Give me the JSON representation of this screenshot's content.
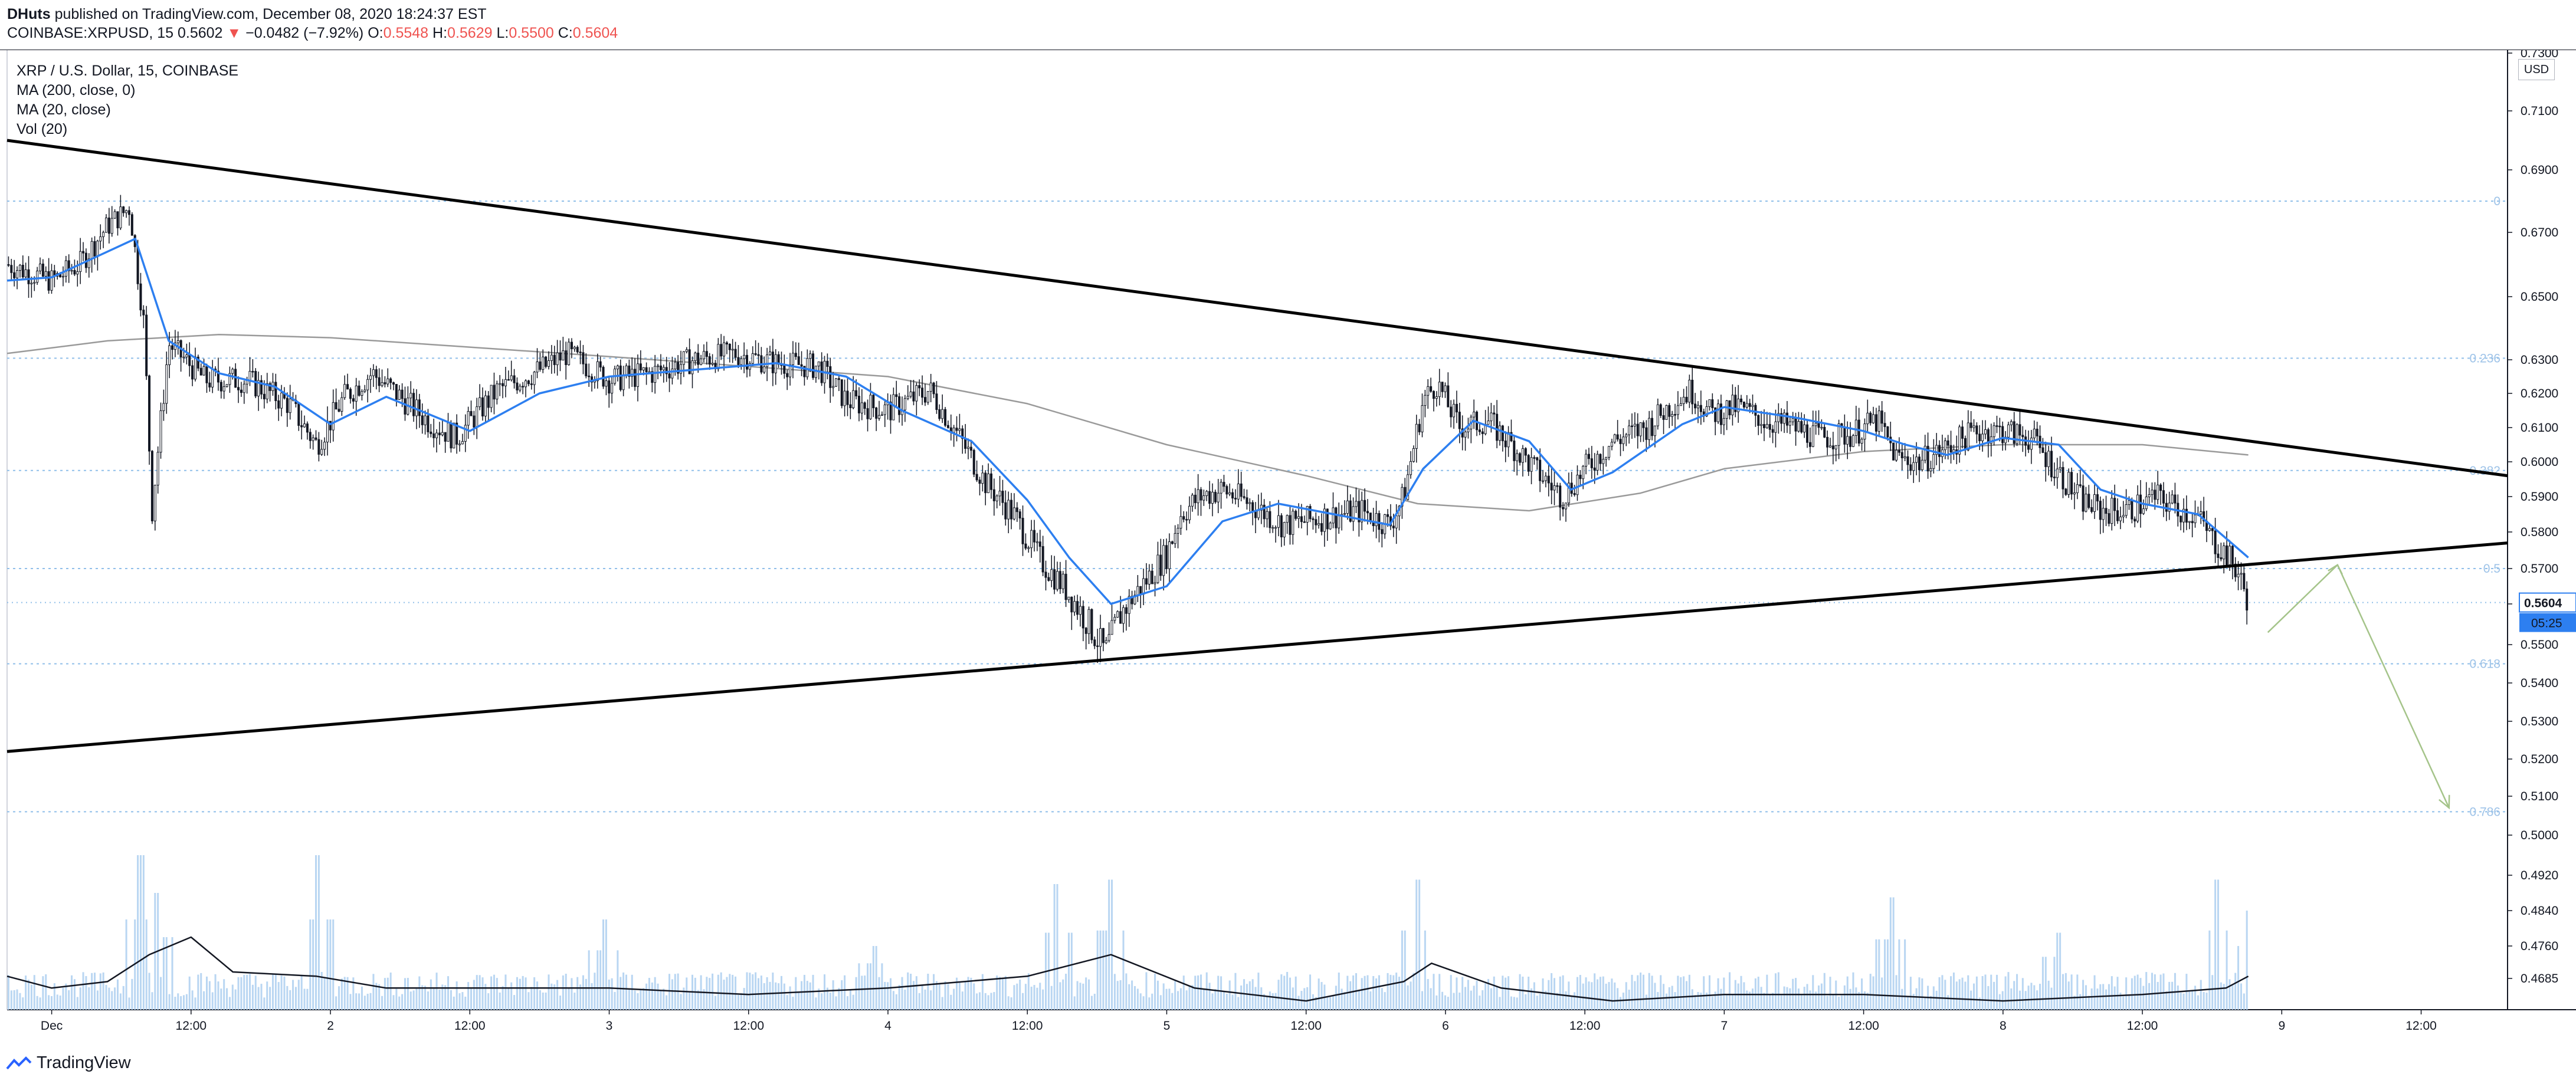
{
  "header": {
    "author": "DHuts",
    "published": "published on TradingView.com, December 08, 2020 18:24:37 EST",
    "symbol_line": "COINBASE:XRPUSD, 15",
    "last": "0.5602",
    "down_arrow": "▼",
    "change": "−0.0482 (−7.92%)",
    "o_label": "O:",
    "o": "0.5548",
    "h_label": "H:",
    "h": "0.5629",
    "l_label": "L:",
    "l": "0.5500",
    "c_label": "C:",
    "c": "0.5604"
  },
  "legend": {
    "title": "XRP / U.S. Dollar, 15, COINBASE",
    "ma200": "MA (200, close, 0)",
    "ma20": "MA (20, close)",
    "vol": "Vol (20)"
  },
  "axis": {
    "currency": "USD",
    "price_tag": "0.5604",
    "countdown": "05:25"
  },
  "footer": {
    "brand": "TradingView"
  },
  "colors": {
    "candle": "#131722",
    "ma20": "#2d7ff0",
    "ma200": "#9a9a9a",
    "volume": "#b9d6f2",
    "fib": "#90bfe9",
    "trend": "#000000",
    "projection": "#a5c48a",
    "tag": "#2d7ff0"
  },
  "chart_data": {
    "type": "candlestick",
    "symbol": "XRPUSD",
    "interval": "15",
    "x_ticks": [
      "Dec",
      "12:00",
      "2",
      "12:00",
      "3",
      "12:00",
      "4",
      "12:00",
      "5",
      "12:00",
      "6",
      "12:00",
      "7",
      "12:00",
      "8",
      "12:00",
      "9",
      "12:00"
    ],
    "x_tick_days": [
      1.0,
      1.5,
      2.0,
      2.5,
      3.0,
      3.5,
      4.0,
      4.5,
      5.0,
      5.5,
      6.0,
      6.5,
      7.0,
      7.5,
      8.0,
      8.5,
      9.0,
      9.5
    ],
    "y_ticks": [
      "0.7300",
      "0.7100",
      "0.6900",
      "0.6700",
      "0.6500",
      "0.6300",
      "0.6200",
      "0.6100",
      "0.6000",
      "0.5900",
      "0.5800",
      "0.5700",
      "0.5600",
      "0.5500",
      "0.5400",
      "0.5300",
      "0.5200",
      "0.5100",
      "0.5000",
      "0.4920",
      "0.4840",
      "0.4760",
      "0.4685"
    ],
    "fib_levels": [
      {
        "label": "0",
        "price": 0.68
      },
      {
        "label": "0.236",
        "price": 0.6305
      },
      {
        "label": "0.382",
        "price": 0.5975
      },
      {
        "label": "0.5",
        "price": 0.57
      },
      {
        "label": "0.618",
        "price": 0.545
      },
      {
        "label": "0.786",
        "price": 0.506
      }
    ],
    "close_path": [
      [
        0.84,
        0.66
      ],
      [
        1.0,
        0.655
      ],
      [
        1.1,
        0.66
      ],
      [
        1.2,
        0.672
      ],
      [
        1.28,
        0.678
      ],
      [
        1.33,
        0.642
      ],
      [
        1.36,
        0.586
      ],
      [
        1.42,
        0.635
      ],
      [
        1.55,
        0.624
      ],
      [
        1.7,
        0.624
      ],
      [
        1.85,
        0.617
      ],
      [
        1.95,
        0.605
      ],
      [
        2.05,
        0.619
      ],
      [
        2.15,
        0.626
      ],
      [
        2.35,
        0.612
      ],
      [
        2.45,
        0.607
      ],
      [
        2.6,
        0.621
      ],
      [
        2.75,
        0.627
      ],
      [
        2.85,
        0.632
      ],
      [
        3.0,
        0.624
      ],
      [
        3.15,
        0.626
      ],
      [
        3.3,
        0.63
      ],
      [
        3.45,
        0.632
      ],
      [
        3.6,
        0.629
      ],
      [
        3.75,
        0.628
      ],
      [
        3.85,
        0.618
      ],
      [
        4.0,
        0.615
      ],
      [
        4.15,
        0.621
      ],
      [
        4.25,
        0.608
      ],
      [
        4.35,
        0.594
      ],
      [
        4.45,
        0.585
      ],
      [
        4.55,
        0.572
      ],
      [
        4.62,
        0.566
      ],
      [
        4.72,
        0.555
      ],
      [
        4.78,
        0.548
      ],
      [
        4.83,
        0.557
      ],
      [
        4.92,
        0.566
      ],
      [
        5.0,
        0.574
      ],
      [
        5.05,
        0.585
      ],
      [
        5.12,
        0.59
      ],
      [
        5.2,
        0.592
      ],
      [
        5.3,
        0.588
      ],
      [
        5.42,
        0.582
      ],
      [
        5.55,
        0.584
      ],
      [
        5.7,
        0.586
      ],
      [
        5.8,
        0.582
      ],
      [
        5.85,
        0.59
      ],
      [
        5.92,
        0.618
      ],
      [
        5.97,
        0.623
      ],
      [
        6.05,
        0.61
      ],
      [
        6.15,
        0.612
      ],
      [
        6.25,
        0.604
      ],
      [
        6.33,
        0.597
      ],
      [
        6.42,
        0.59
      ],
      [
        6.5,
        0.598
      ],
      [
        6.6,
        0.606
      ],
      [
        6.72,
        0.61
      ],
      [
        6.8,
        0.616
      ],
      [
        6.88,
        0.621
      ],
      [
        6.95,
        0.614
      ],
      [
        7.05,
        0.616
      ],
      [
        7.15,
        0.612
      ],
      [
        7.25,
        0.61
      ],
      [
        7.35,
        0.607
      ],
      [
        7.45,
        0.608
      ],
      [
        7.55,
        0.612
      ],
      [
        7.62,
        0.601
      ],
      [
        7.7,
        0.6
      ],
      [
        7.8,
        0.604
      ],
      [
        7.9,
        0.609
      ],
      [
        8.0,
        0.609
      ],
      [
        8.1,
        0.607
      ],
      [
        8.2,
        0.597
      ],
      [
        8.28,
        0.589
      ],
      [
        8.35,
        0.586
      ],
      [
        8.45,
        0.586
      ],
      [
        8.55,
        0.59
      ],
      [
        8.62,
        0.587
      ],
      [
        8.7,
        0.584
      ],
      [
        8.75,
        0.578
      ],
      [
        8.8,
        0.574
      ],
      [
        8.84,
        0.569
      ],
      [
        8.88,
        0.561
      ]
    ],
    "ma20_path": [
      [
        0.84,
        0.655
      ],
      [
        1.0,
        0.656
      ],
      [
        1.2,
        0.664
      ],
      [
        1.3,
        0.668
      ],
      [
        1.42,
        0.636
      ],
      [
        1.6,
        0.626
      ],
      [
        1.8,
        0.622
      ],
      [
        2.0,
        0.611
      ],
      [
        2.2,
        0.619
      ],
      [
        2.5,
        0.609
      ],
      [
        2.75,
        0.62
      ],
      [
        3.0,
        0.625
      ],
      [
        3.3,
        0.627
      ],
      [
        3.6,
        0.629
      ],
      [
        3.85,
        0.625
      ],
      [
        4.05,
        0.615
      ],
      [
        4.3,
        0.606
      ],
      [
        4.5,
        0.589
      ],
      [
        4.65,
        0.573
      ],
      [
        4.8,
        0.56
      ],
      [
        5.0,
        0.565
      ],
      [
        5.2,
        0.583
      ],
      [
        5.4,
        0.588
      ],
      [
        5.6,
        0.585
      ],
      [
        5.8,
        0.582
      ],
      [
        5.92,
        0.598
      ],
      [
        6.1,
        0.612
      ],
      [
        6.3,
        0.606
      ],
      [
        6.45,
        0.592
      ],
      [
        6.6,
        0.597
      ],
      [
        6.85,
        0.611
      ],
      [
        7.0,
        0.616
      ],
      [
        7.25,
        0.613
      ],
      [
        7.5,
        0.609
      ],
      [
        7.65,
        0.605
      ],
      [
        7.8,
        0.602
      ],
      [
        8.0,
        0.607
      ],
      [
        8.2,
        0.605
      ],
      [
        8.35,
        0.592
      ],
      [
        8.5,
        0.588
      ],
      [
        8.7,
        0.585
      ],
      [
        8.88,
        0.573
      ]
    ],
    "ma200_path": [
      [
        0.84,
        0.632
      ],
      [
        1.2,
        0.636
      ],
      [
        1.6,
        0.638
      ],
      [
        2.0,
        0.637
      ],
      [
        2.5,
        0.634
      ],
      [
        3.0,
        0.631
      ],
      [
        3.5,
        0.628
      ],
      [
        4.0,
        0.625
      ],
      [
        4.5,
        0.617
      ],
      [
        5.0,
        0.605
      ],
      [
        5.5,
        0.596
      ],
      [
        5.9,
        0.588
      ],
      [
        6.3,
        0.586
      ],
      [
        6.7,
        0.591
      ],
      [
        7.0,
        0.598
      ],
      [
        7.5,
        0.603
      ],
      [
        8.0,
        0.605
      ],
      [
        8.5,
        0.605
      ],
      [
        8.88,
        0.602
      ]
    ],
    "trendlines": [
      {
        "name": "upper",
        "from": [
          0.84,
          0.7
        ],
        "to": [
          9.81,
          0.596
        ]
      },
      {
        "name": "lower",
        "from": [
          0.84,
          0.522
        ],
        "to": [
          9.81,
          0.577
        ]
      }
    ],
    "projection": [
      [
        8.95,
        0.553
      ],
      [
        9.2,
        0.571
      ],
      [
        9.6,
        0.507
      ]
    ],
    "volume_baseline_price": 0.464,
    "volume_spikes": [
      [
        1.32,
        0.496
      ],
      [
        1.38,
        0.488
      ],
      [
        1.95,
        0.496
      ],
      [
        2.98,
        0.482
      ],
      [
        3.95,
        0.476
      ],
      [
        4.6,
        0.49
      ],
      [
        4.8,
        0.491
      ],
      [
        5.9,
        0.491
      ],
      [
        7.6,
        0.487
      ],
      [
        8.2,
        0.479
      ],
      [
        8.77,
        0.491
      ],
      [
        8.88,
        0.484
      ]
    ],
    "vol_ma_path": [
      [
        0.84,
        0.469
      ],
      [
        1.0,
        0.467
      ],
      [
        1.2,
        0.468
      ],
      [
        1.35,
        0.474
      ],
      [
        1.5,
        0.478
      ],
      [
        1.65,
        0.47
      ],
      [
        1.95,
        0.469
      ],
      [
        2.2,
        0.467
      ],
      [
        2.5,
        0.467
      ],
      [
        3.0,
        0.467
      ],
      [
        3.5,
        0.466
      ],
      [
        4.0,
        0.467
      ],
      [
        4.5,
        0.469
      ],
      [
        4.8,
        0.474
      ],
      [
        5.1,
        0.467
      ],
      [
        5.5,
        0.465
      ],
      [
        5.85,
        0.468
      ],
      [
        5.95,
        0.472
      ],
      [
        6.2,
        0.467
      ],
      [
        6.6,
        0.465
      ],
      [
        7.0,
        0.466
      ],
      [
        7.5,
        0.466
      ],
      [
        8.0,
        0.465
      ],
      [
        8.5,
        0.466
      ],
      [
        8.8,
        0.467
      ],
      [
        8.88,
        0.469
      ]
    ]
  }
}
